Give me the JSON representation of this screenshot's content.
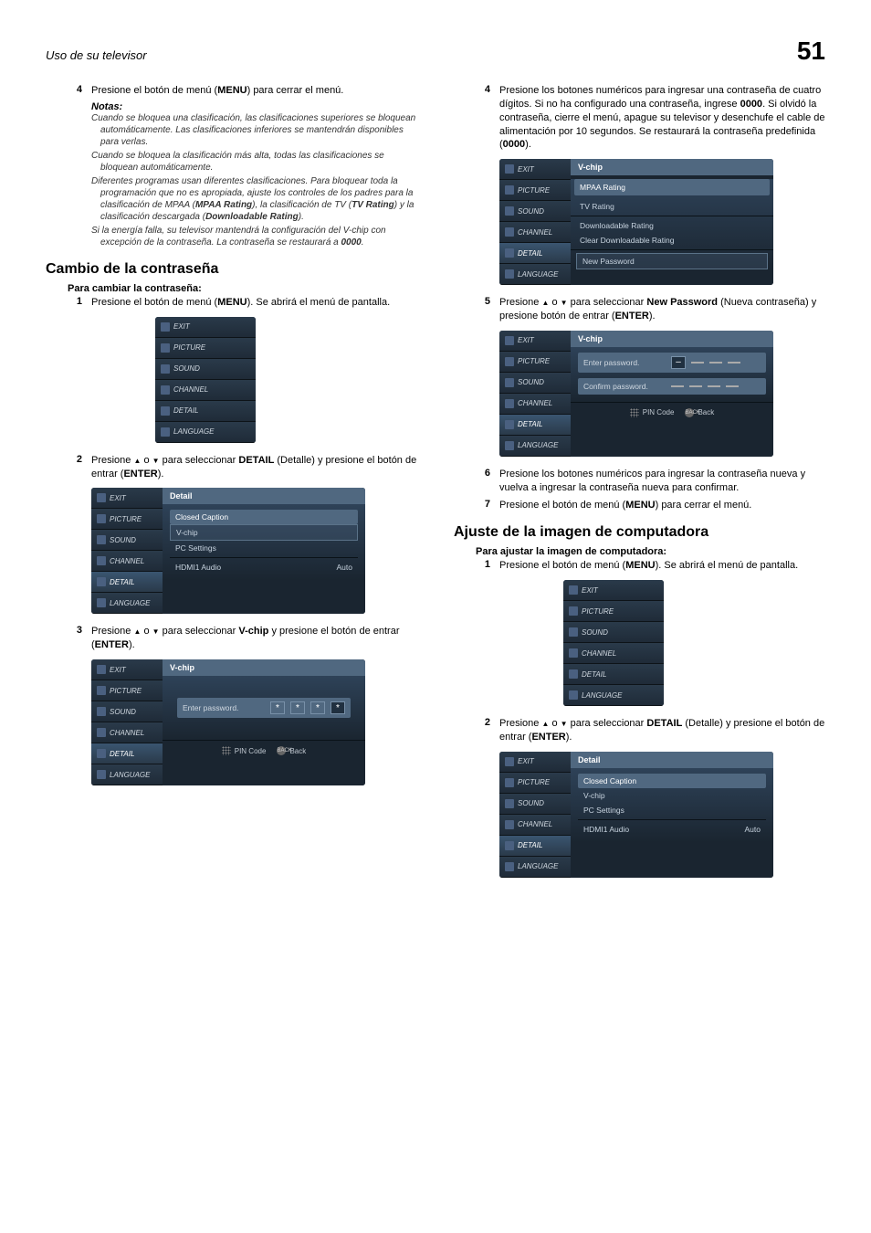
{
  "page": {
    "header_left": "Uso de su televisor",
    "number": "51"
  },
  "sidebar_items": [
    "EXIT",
    "PICTURE",
    "SOUND",
    "CHANNEL",
    "DETAIL",
    "LANGUAGE"
  ],
  "colors": {
    "menu_bg": "#1a2530",
    "panel_title_bg": "#506880",
    "panel_grad_top": "#2e4258",
    "text_muted": "#c8d4e0",
    "box_border": "#7890a8"
  },
  "left": {
    "step4": "Presione el botón de menú (<b>MENU</b>) para cerrar el menú.",
    "notas_label": "Notas:",
    "notes": [
      "Cuando se bloquea una clasificación, las clasificaciones superiores se bloquean automáticamente. Las clasificaciones inferiores se mantendrán disponibles para verlas.",
      "Cuando se bloquea la clasificación más alta, todas las clasificaciones se bloquean automáticamente.",
      "Diferentes programas usan diferentes clasificaciones. Para bloquear toda la programación que no es apropiada, ajuste los controles de los padres para la clasificación de MPAA (<b><i>MPAA Rating</i></b>), la clasificación de TV (<b><i>TV Rating</i></b>) y la clasificación descargada (<b><i>Downloadable Rating</i></b>).",
      "Si la energía falla, su televisor mantendrá la configuración del V-chip con excepción de la contraseña. La contraseña se restaurará a <b><i>0000</i></b>."
    ],
    "h_cambio": "Cambio de la contraseña",
    "sub_cambiar": "Para cambiar la contraseña:",
    "s1": "Presione el botón de menú (<b>MENU</b>). Se abrirá el menú de pantalla.",
    "s2": "Presione <span class='arrow-up'></span> o <span class='arrow-down'></span> para seleccionar <b>DETAIL</b> (Detalle) y presione el botón de entrar (<b>ENTER</b>).",
    "s3": "Presione <span class='arrow-up'></span> o <span class='arrow-down'></span> para seleccionar <b>V-chip</b> y presione el botón de entrar (<b>ENTER</b>).",
    "detail_panel": {
      "title": "Detail",
      "items": [
        "Closed Caption",
        "V-chip",
        "PC Settings"
      ],
      "hdmi_label": "HDMI1 Audio",
      "hdmi_val": "Auto"
    },
    "vchip_pw": {
      "title": "V-chip",
      "enter": "Enter password.",
      "stars": [
        "*",
        "*",
        "*",
        "*"
      ],
      "footer_pin": "PIN Code",
      "footer_back": "Back",
      "back_sup": "BACK"
    }
  },
  "right": {
    "s4": "Presione los botones numéricos para ingresar una contraseña de cuatro dígitos. Si no ha configurado una contraseña, ingrese <b>0000</b>. Si olvidó la contraseña, cierre el menú, apague su televisor y desenchufe el cable de alimentación por 10 segundos. Se restaurará la contraseña predefinida (<b>0000</b>).",
    "vchip_menu": {
      "title": "V-chip",
      "items": [
        "MPAA Rating",
        "TV Rating",
        "Downloadable Rating",
        "Clear Downloadable Rating",
        "New Password"
      ]
    },
    "s5": "Presione <span class='arrow-up'></span> o <span class='arrow-down'></span> para seleccionar <b>New Password</b> (Nueva contraseña) y presione botón de entrar (<b>ENTER</b>).",
    "pw_confirm": {
      "title": "V-chip",
      "enter": "Enter password.",
      "confirm": "Confirm password.",
      "footer_pin": "PIN Code",
      "footer_back": "Back",
      "back_sup": "BACK"
    },
    "s6": "Presione los botones numéricos para ingresar la contraseña nueva y vuelva a ingresar la contraseña nueva para confirmar.",
    "s7": "Presione el botón de menú (<b>MENU</b>) para cerrar el menú.",
    "h_ajuste": "Ajuste de la imagen de computadora",
    "sub_ajustar": "Para ajustar la imagen de computadora:",
    "a1": "Presione el botón de menú (<b>MENU</b>). Se abrirá el menú de pantalla.",
    "a2": "Presione <span class='arrow-up'></span> o <span class='arrow-down'></span> para seleccionar <b>DETAIL</b> (Detalle) y presione el botón de entrar (<b>ENTER</b>).",
    "detail_panel2": {
      "title": "Detail",
      "items": [
        "Closed Caption",
        "V-chip",
        "PC Settings"
      ],
      "hdmi_label": "HDMI1 Audio",
      "hdmi_val": "Auto"
    }
  }
}
